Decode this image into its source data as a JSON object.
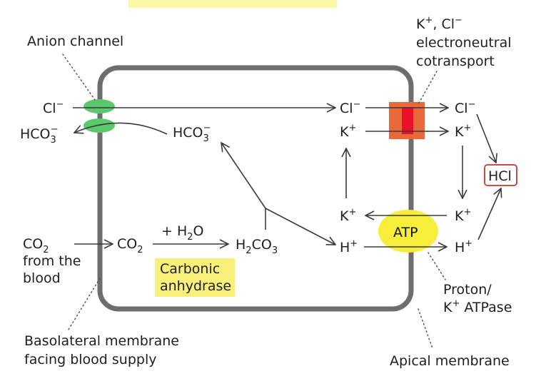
{
  "colors": {
    "membrane": "#6e6e6e",
    "anion_channel": "#5cc86e",
    "cotransporter_box": "#e8683a",
    "cotransporter_core": "#e8102a",
    "atp_highlight": "#f6ee3a",
    "enzyme_highlight": "#f8f07a",
    "top_highlight": "#fbf7a8",
    "hcl_box": "#c0392b"
  },
  "labels": {
    "anion_channel": "Anion channel",
    "cotransport": {
      "ion": "K",
      "sup_plus": "+",
      "mid": ", Cl",
      "sup_minus": "−",
      "line2": "electroneutral",
      "line3": "cotransport"
    },
    "basolateral": {
      "line1": "Basolateral membrane",
      "line2": "facing blood supply"
    },
    "apical": "Apical membrane",
    "proton_pump": {
      "line1": "Proton/",
      "ion": "K",
      "sup": "+",
      "rest": " ATPase"
    },
    "enzyme": {
      "line1": "Carbonic",
      "line2": "anhydrase"
    },
    "atp": "ATP",
    "hcl": "HCl",
    "water": "+ H",
    "water_sub": "2",
    "water_rest": "O",
    "co2_source": {
      "line1": "from the",
      "line2": "blood"
    }
  },
  "species": {
    "cl": {
      "base": "Cl",
      "sup": "−"
    },
    "k": {
      "base": "K",
      "sup": "+"
    },
    "h": {
      "base": "H",
      "sup": "+"
    },
    "hco3": {
      "base": "HCO",
      "sub": "3",
      "sup": "−"
    },
    "co2": {
      "base": "CO",
      "sub": "2"
    },
    "h2co3": {
      "a": "H",
      "sub1": "2",
      "b": "CO",
      "sub2": "3"
    }
  }
}
